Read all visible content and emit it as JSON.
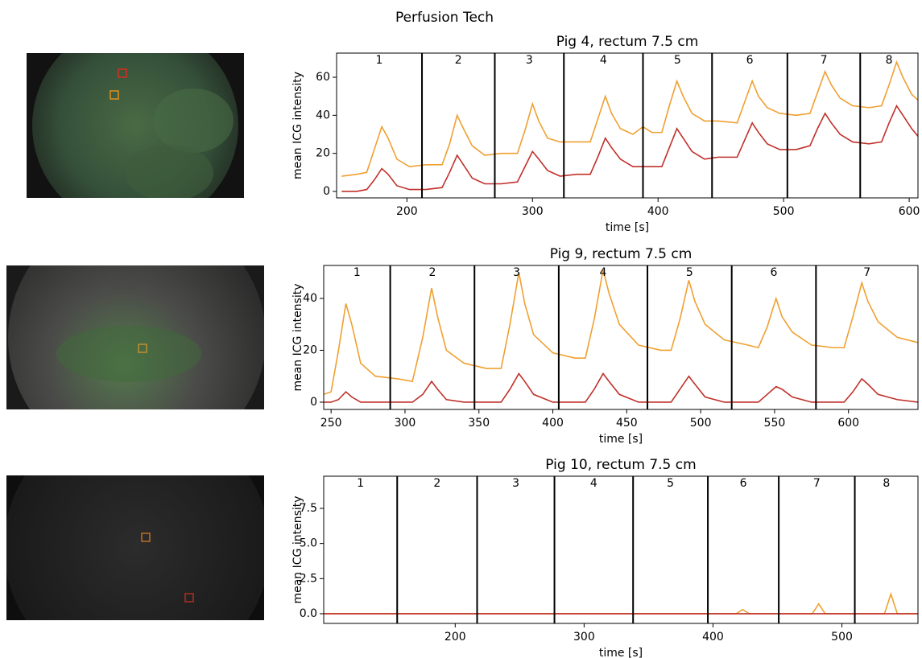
{
  "title": "Perfusion Tech",
  "chart_data": [
    {
      "type": "line",
      "title": "Pig 4, rectum 7.5 cm",
      "xlabel": "time [s]",
      "ylabel": "mean ICG intensity",
      "xlim": [
        144,
        607
      ],
      "ylim": [
        -3.4,
        72.7
      ],
      "xticks": [
        200,
        300,
        400,
        500,
        600
      ],
      "yticks": [
        0,
        20,
        40,
        60
      ],
      "boundaries": [
        212,
        270,
        325,
        388,
        443,
        503,
        561
      ],
      "segment_labels": [
        "1",
        "2",
        "3",
        "4",
        "5",
        "6",
        "7",
        "8"
      ],
      "x": [
        148,
        160,
        168,
        174,
        180,
        185,
        192,
        202,
        215,
        228,
        234,
        240,
        245,
        252,
        262,
        275,
        288,
        294,
        300,
        305,
        312,
        322,
        335,
        346,
        352,
        358,
        363,
        370,
        380,
        388,
        395,
        403,
        409,
        415,
        420,
        427,
        437,
        448,
        463,
        469,
        475,
        480,
        487,
        497,
        510,
        521,
        527,
        533,
        538,
        545,
        555,
        568,
        578,
        584,
        590,
        595,
        602,
        607
      ],
      "series": [
        {
          "color": "#f0a030",
          "values": [
            8,
            9,
            10,
            22,
            34,
            28,
            17,
            13,
            14,
            14,
            25,
            40,
            33,
            24,
            19,
            20,
            20,
            32,
            46,
            37,
            28,
            26,
            26,
            26,
            38,
            50,
            41,
            33,
            30,
            34,
            31,
            31,
            45,
            58,
            50,
            41,
            37,
            37,
            36,
            47,
            58,
            50,
            44,
            41,
            40,
            41,
            52,
            63,
            56,
            49,
            45,
            44,
            45,
            56,
            68,
            60,
            51,
            48
          ]
        },
        {
          "color": "#c0302a",
          "values": [
            0,
            0,
            1,
            6,
            12,
            9,
            3,
            1,
            1,
            2,
            10,
            19,
            14,
            7,
            4,
            4,
            5,
            13,
            21,
            17,
            11,
            8,
            9,
            9,
            18,
            28,
            23,
            17,
            13,
            13,
            13,
            13,
            23,
            33,
            28,
            21,
            17,
            18,
            18,
            27,
            36,
            31,
            25,
            22,
            22,
            24,
            33,
            41,
            36,
            30,
            26,
            25,
            26,
            36,
            45,
            40,
            33,
            29
          ]
        }
      ]
    },
    {
      "type": "line",
      "title": "Pig 9, rectum 7.5 cm",
      "xlabel": "time [s]",
      "ylabel": "mean ICG intensity",
      "xlim": [
        245,
        647
      ],
      "ylim": [
        -2.8,
        52.7
      ],
      "xticks": [
        250,
        300,
        350,
        400,
        450,
        500,
        550,
        600
      ],
      "yticks": [
        0,
        20,
        40
      ],
      "boundaries": [
        290,
        347,
        404,
        464,
        521,
        578
      ],
      "segment_labels": [
        "1",
        "2",
        "3",
        "4",
        "5",
        "6",
        "7"
      ],
      "x": [
        245,
        250,
        255,
        260,
        264,
        270,
        280,
        295,
        305,
        312,
        318,
        322,
        328,
        340,
        355,
        365,
        371,
        377,
        381,
        387,
        400,
        415,
        422,
        428,
        434,
        438,
        445,
        458,
        473,
        480,
        486,
        492,
        496,
        503,
        516,
        532,
        539,
        545,
        551,
        555,
        562,
        575,
        590,
        597,
        603,
        609,
        613,
        620,
        633,
        647
      ],
      "series": [
        {
          "color": "#f0a030",
          "values": [
            3,
            4,
            20,
            38,
            30,
            15,
            10,
            9,
            8,
            25,
            44,
            33,
            20,
            15,
            13,
            13,
            30,
            50,
            38,
            26,
            19,
            17,
            17,
            32,
            51,
            42,
            30,
            22,
            20,
            20,
            32,
            47,
            39,
            30,
            24,
            22,
            21,
            29,
            40,
            33,
            27,
            22,
            21,
            21,
            33,
            46,
            39,
            31,
            25,
            23
          ]
        },
        {
          "color": "#c0302a",
          "values": [
            0,
            0,
            1,
            4,
            2,
            0,
            0,
            0,
            0,
            3,
            8,
            5,
            1,
            0,
            0,
            0,
            5,
            11,
            8,
            3,
            0,
            0,
            0,
            5,
            11,
            8,
            3,
            0,
            0,
            0,
            5,
            10,
            7,
            2,
            0,
            0,
            0,
            3,
            6,
            5,
            2,
            0,
            0,
            0,
            4,
            9,
            7,
            3,
            1,
            0
          ]
        }
      ]
    },
    {
      "type": "line",
      "title": "Pig 10, rectum 7.5 cm",
      "xlabel": "time [s]",
      "ylabel": "mean ICG intensity",
      "xlim": [
        98,
        559
      ],
      "ylim": [
        -0.69,
        9.79
      ],
      "xticks": [
        200,
        300,
        400,
        500
      ],
      "yticks": [
        {
          "value": 0,
          "label": "0.0"
        },
        2.5,
        {
          "value": 5,
          "label": "5.0"
        },
        7.5
      ],
      "boundaries": [
        155,
        217,
        277,
        338,
        396,
        451,
        510
      ],
      "segment_labels": [
        "1",
        "2",
        "3",
        "4",
        "5",
        "6",
        "7",
        "8"
      ],
      "x": [
        98,
        418,
        423,
        428,
        477,
        482,
        487,
        533,
        538,
        543,
        559
      ],
      "series": [
        {
          "color": "#f0a030",
          "values": [
            0,
            0,
            0.3,
            0,
            0,
            0.7,
            0,
            0,
            1.4,
            0,
            0
          ]
        },
        {
          "color": "#c0302a",
          "values": [
            0,
            0,
            0,
            0,
            0,
            0,
            0,
            0,
            0,
            0,
            0
          ]
        }
      ]
    }
  ]
}
